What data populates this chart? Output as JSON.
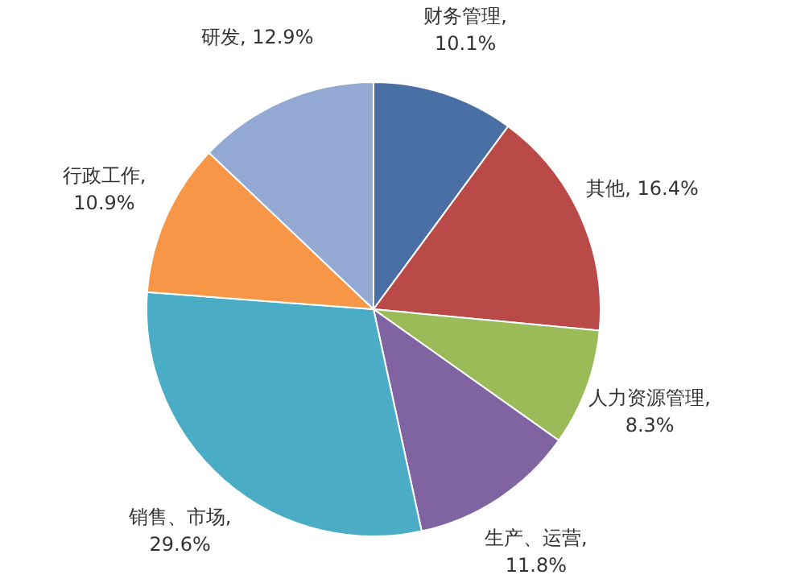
{
  "chart_data": {
    "type": "pie",
    "categories": [
      "财务管理",
      "其他",
      "人力资源管理",
      "生产、运营",
      "销售、市场",
      "行政工作",
      "研发"
    ],
    "values": [
      10.1,
      16.4,
      8.3,
      11.8,
      29.6,
      10.9,
      12.9
    ],
    "value_labels": [
      ", 10.1%",
      ", 16.4%",
      ", 8.3%",
      ", 11.8%",
      ", 29.6%",
      ", 10.9%",
      ", 12.9%"
    ],
    "colors": [
      "#4a6fa5",
      "#b94a48",
      "#9bbb59",
      "#8064a2",
      "#4bacc6",
      "#f79646",
      "#93a9d4"
    ]
  }
}
